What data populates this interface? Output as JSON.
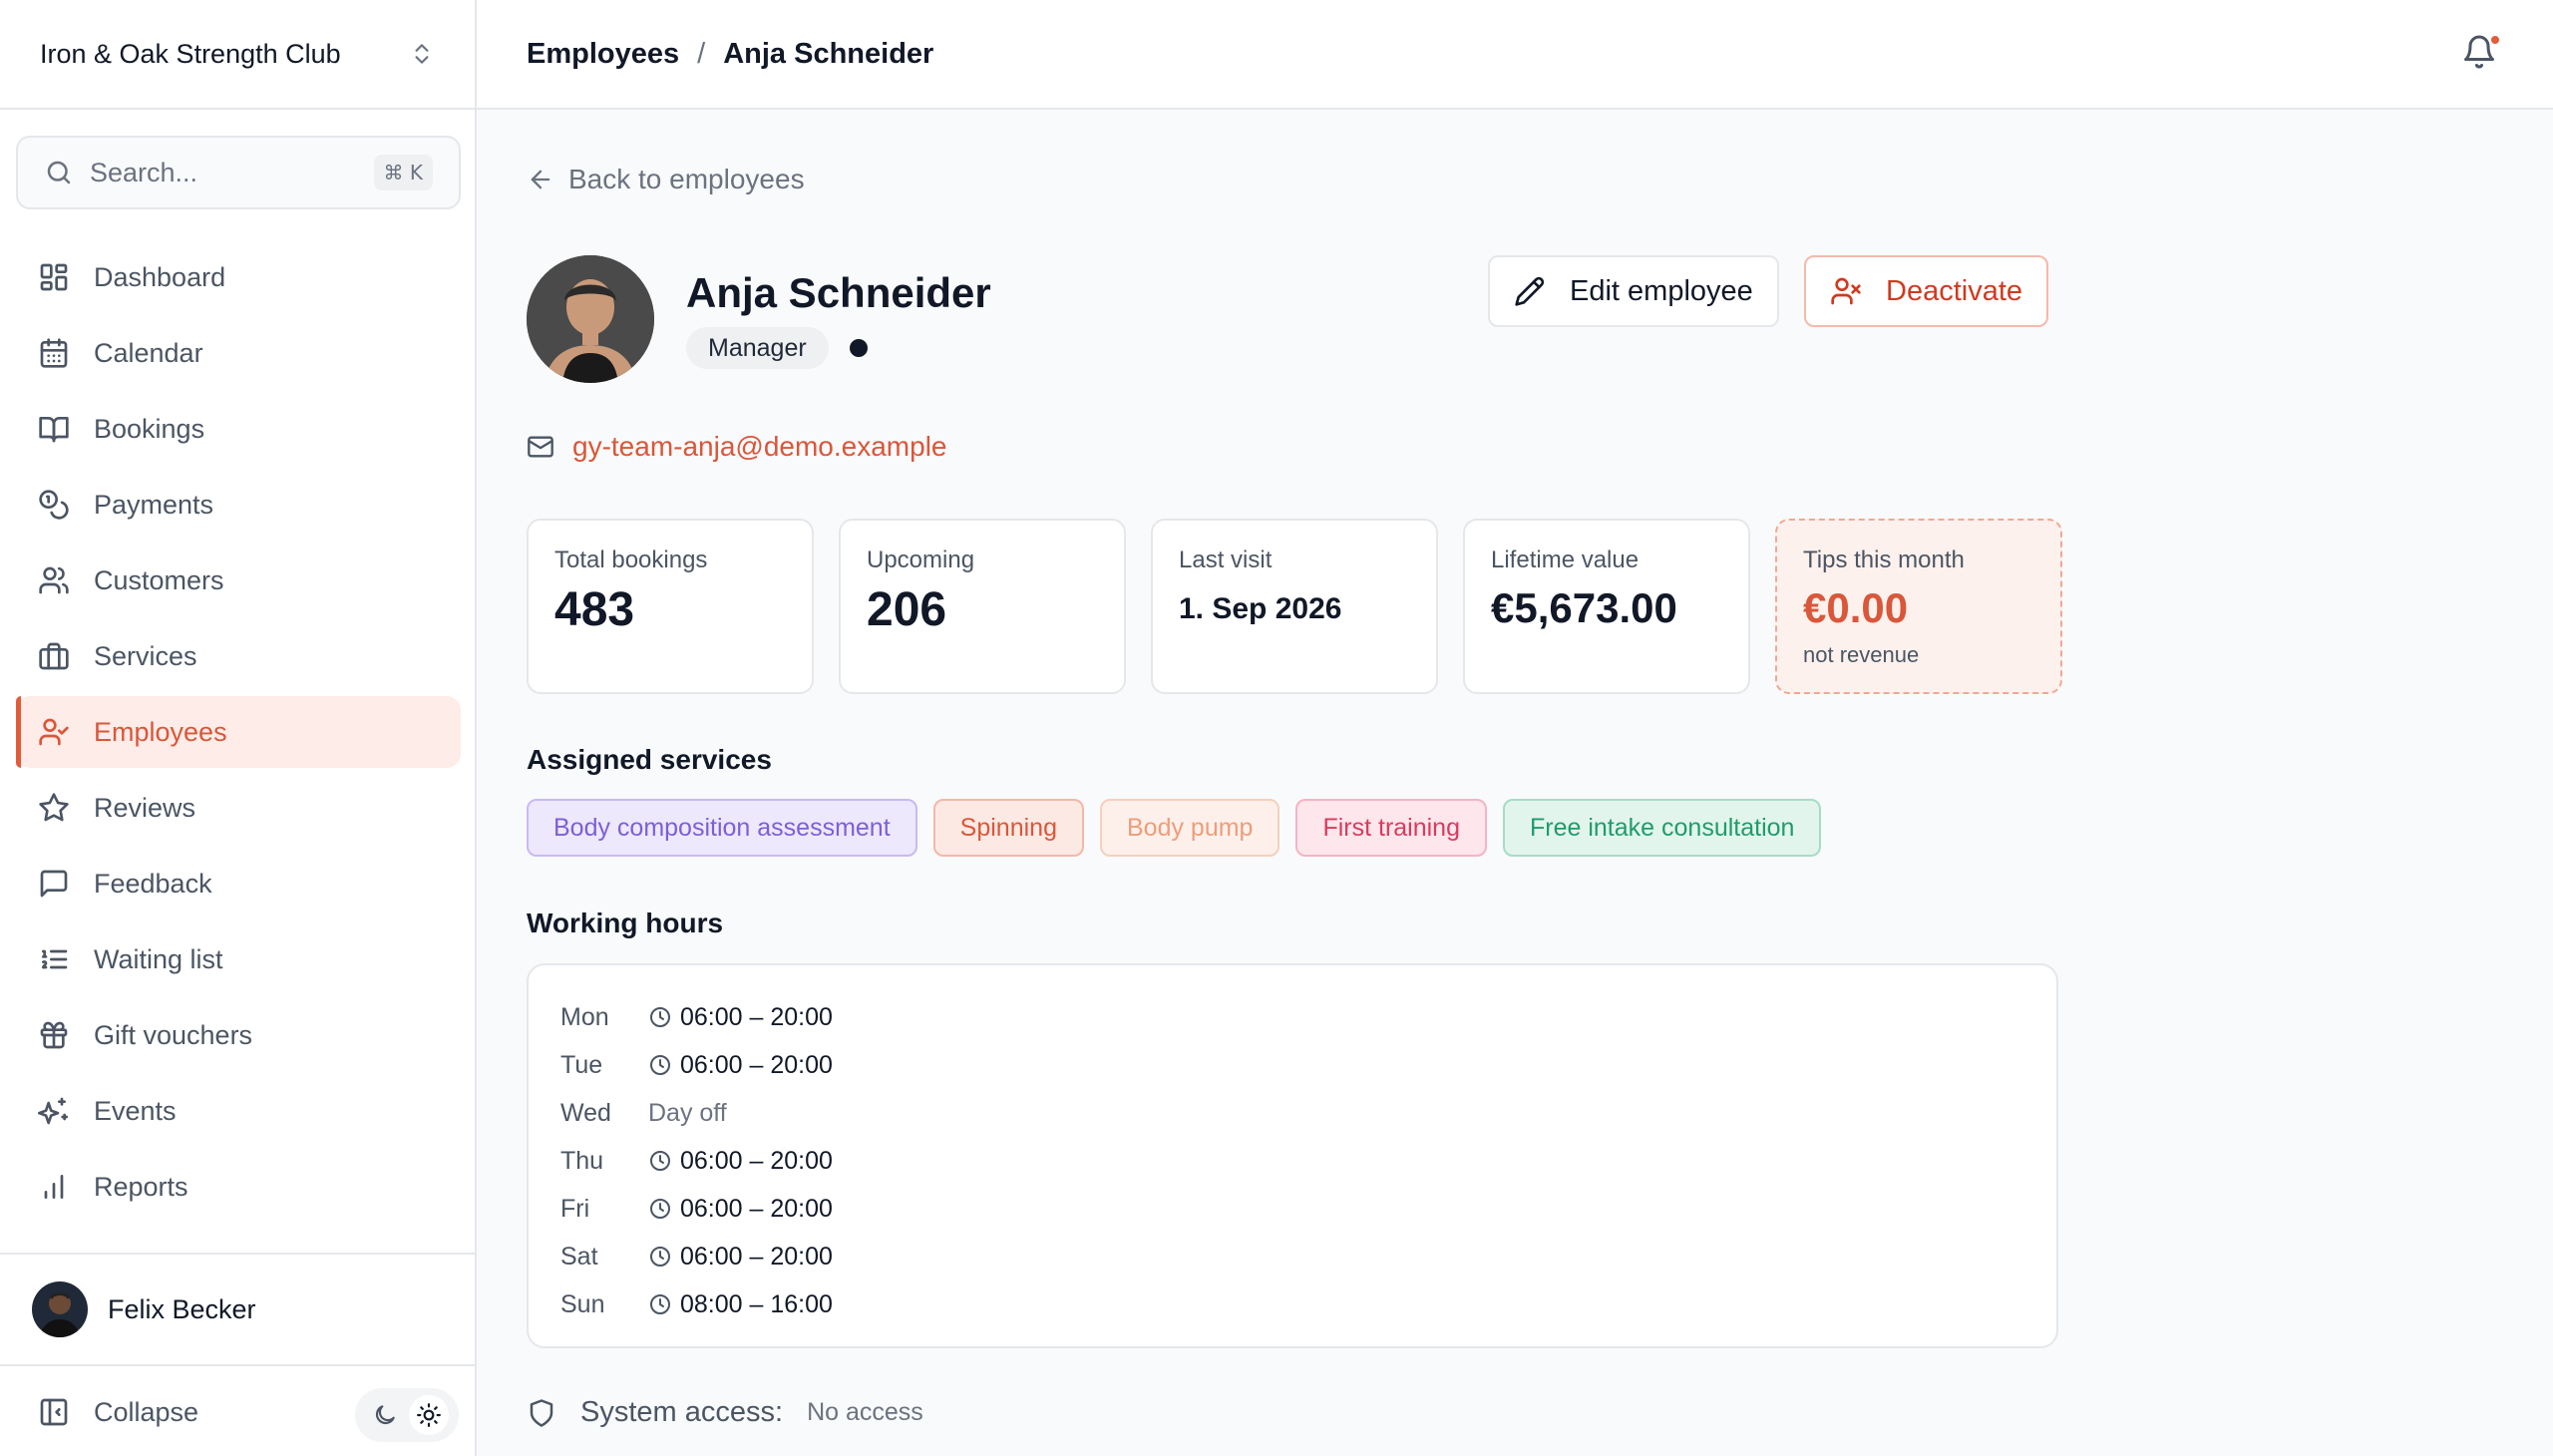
{
  "sidebar": {
    "org_name": "Iron & Oak Strength Club",
    "search": {
      "placeholder": "Search...",
      "shortcut": "⌘ K"
    },
    "nav": [
      {
        "label": "Dashboard",
        "icon": "dashboard-icon"
      },
      {
        "label": "Calendar",
        "icon": "calendar-icon"
      },
      {
        "label": "Bookings",
        "icon": "book-icon"
      },
      {
        "label": "Payments",
        "icon": "coins-icon"
      },
      {
        "label": "Customers",
        "icon": "users-icon"
      },
      {
        "label": "Services",
        "icon": "briefcase-icon"
      },
      {
        "label": "Employees",
        "icon": "user-check-icon",
        "active": true
      },
      {
        "label": "Reviews",
        "icon": "star-icon"
      },
      {
        "label": "Feedback",
        "icon": "message-icon"
      },
      {
        "label": "Waiting list",
        "icon": "list-ordered-icon"
      },
      {
        "label": "Gift vouchers",
        "icon": "gift-icon"
      },
      {
        "label": "Events",
        "icon": "sparkles-icon"
      },
      {
        "label": "Reports",
        "icon": "bar-chart-icon"
      }
    ],
    "user": {
      "name": "Felix Becker"
    },
    "collapse_label": "Collapse"
  },
  "header": {
    "breadcrumb": [
      "Employees",
      "/",
      "Anja Schneider"
    ]
  },
  "employee": {
    "back_label": "Back to employees",
    "name": "Anja Schneider",
    "role": "Manager",
    "email": "gy-team-anja@demo.example",
    "actions": {
      "edit": "Edit employee",
      "deactivate": "Deactivate"
    },
    "stats": [
      {
        "label": "Total bookings",
        "value": "483"
      },
      {
        "label": "Upcoming",
        "value": "206"
      },
      {
        "label": "Last visit",
        "value": "1. Sep 2026"
      },
      {
        "label": "Lifetime value",
        "value": "€5,673.00"
      },
      {
        "label": "Tips this month",
        "value": "€0.00",
        "sub": "not revenue"
      }
    ],
    "services_title": "Assigned services",
    "services": [
      {
        "label": "Body composition assessment",
        "color": "#7c5fd9",
        "bg": "#ede8fb",
        "border": "#c9b9f3"
      },
      {
        "label": "Spinning",
        "color": "#d9573a",
        "bg": "#fde9e3",
        "border": "#f3b8a7"
      },
      {
        "label": "Body pump",
        "color": "#ee9d7a",
        "bg": "#fdf0ea",
        "border": "#f7cfbd"
      },
      {
        "label": "First training",
        "color": "#db3a5d",
        "bg": "#fde6ec",
        "border": "#f5b3c3"
      },
      {
        "label": "Free intake consultation",
        "color": "#1f9c6c",
        "bg": "#e2f5ed",
        "border": "#a6dcc5"
      }
    ],
    "hours_title": "Working hours",
    "hours": [
      {
        "day": "Mon",
        "time": "06:00 – 20:00",
        "off": false
      },
      {
        "day": "Tue",
        "time": "06:00 – 20:00",
        "off": false
      },
      {
        "day": "Wed",
        "time": "Day off",
        "off": true
      },
      {
        "day": "Thu",
        "time": "06:00 – 20:00",
        "off": false
      },
      {
        "day": "Fri",
        "time": "06:00 – 20:00",
        "off": false
      },
      {
        "day": "Sat",
        "time": "06:00 – 20:00",
        "off": false
      },
      {
        "day": "Sun",
        "time": "08:00 – 16:00",
        "off": false
      }
    ],
    "access_label": "System access:",
    "access_value": "No access"
  },
  "colors": {
    "accent": "#e25c3a",
    "danger": "#d03a1f"
  }
}
